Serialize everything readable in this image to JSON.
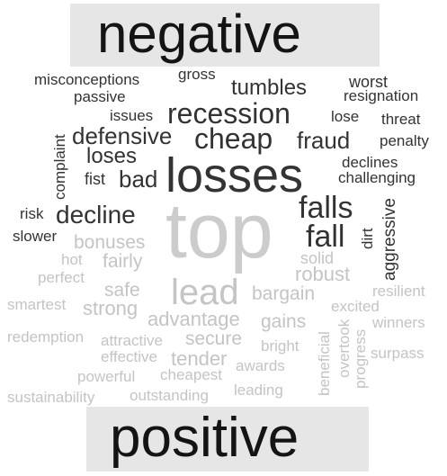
{
  "negative_label": "negative",
  "positive_label": "positive",
  "colors": {
    "negative_words": "#333333",
    "positive_words": "#c4c4c4",
    "banner_bg": "#e6e6e6",
    "banner_text": "#141414"
  },
  "center_word": "top",
  "negative_words": [
    "misconceptions",
    "gross",
    "worst",
    "passive",
    "resignation",
    "tumbles",
    "issues",
    "recession",
    "lose",
    "threat",
    "complaint",
    "defensive",
    "cheap",
    "fraud",
    "penalty",
    "losses",
    "loses",
    "declines",
    "fist",
    "bad",
    "challenging",
    "aggressive",
    "risk",
    "decline",
    "falls",
    "fall",
    "slower",
    "dirt"
  ],
  "positive_words": [
    "bonuses",
    "hot",
    "solid",
    "fairly",
    "robust",
    "perfect",
    "lead",
    "safe",
    "bargain",
    "resilient",
    "smartest",
    "strong",
    "excited",
    "advantage",
    "gains",
    "winners",
    "redemption",
    "secure",
    "beneficial",
    "overtook",
    "attractive",
    "bright",
    "surpass",
    "effective",
    "tender",
    "progress",
    "awards",
    "powerful",
    "cheapest",
    "sustainability",
    "outstanding",
    "leading"
  ]
}
